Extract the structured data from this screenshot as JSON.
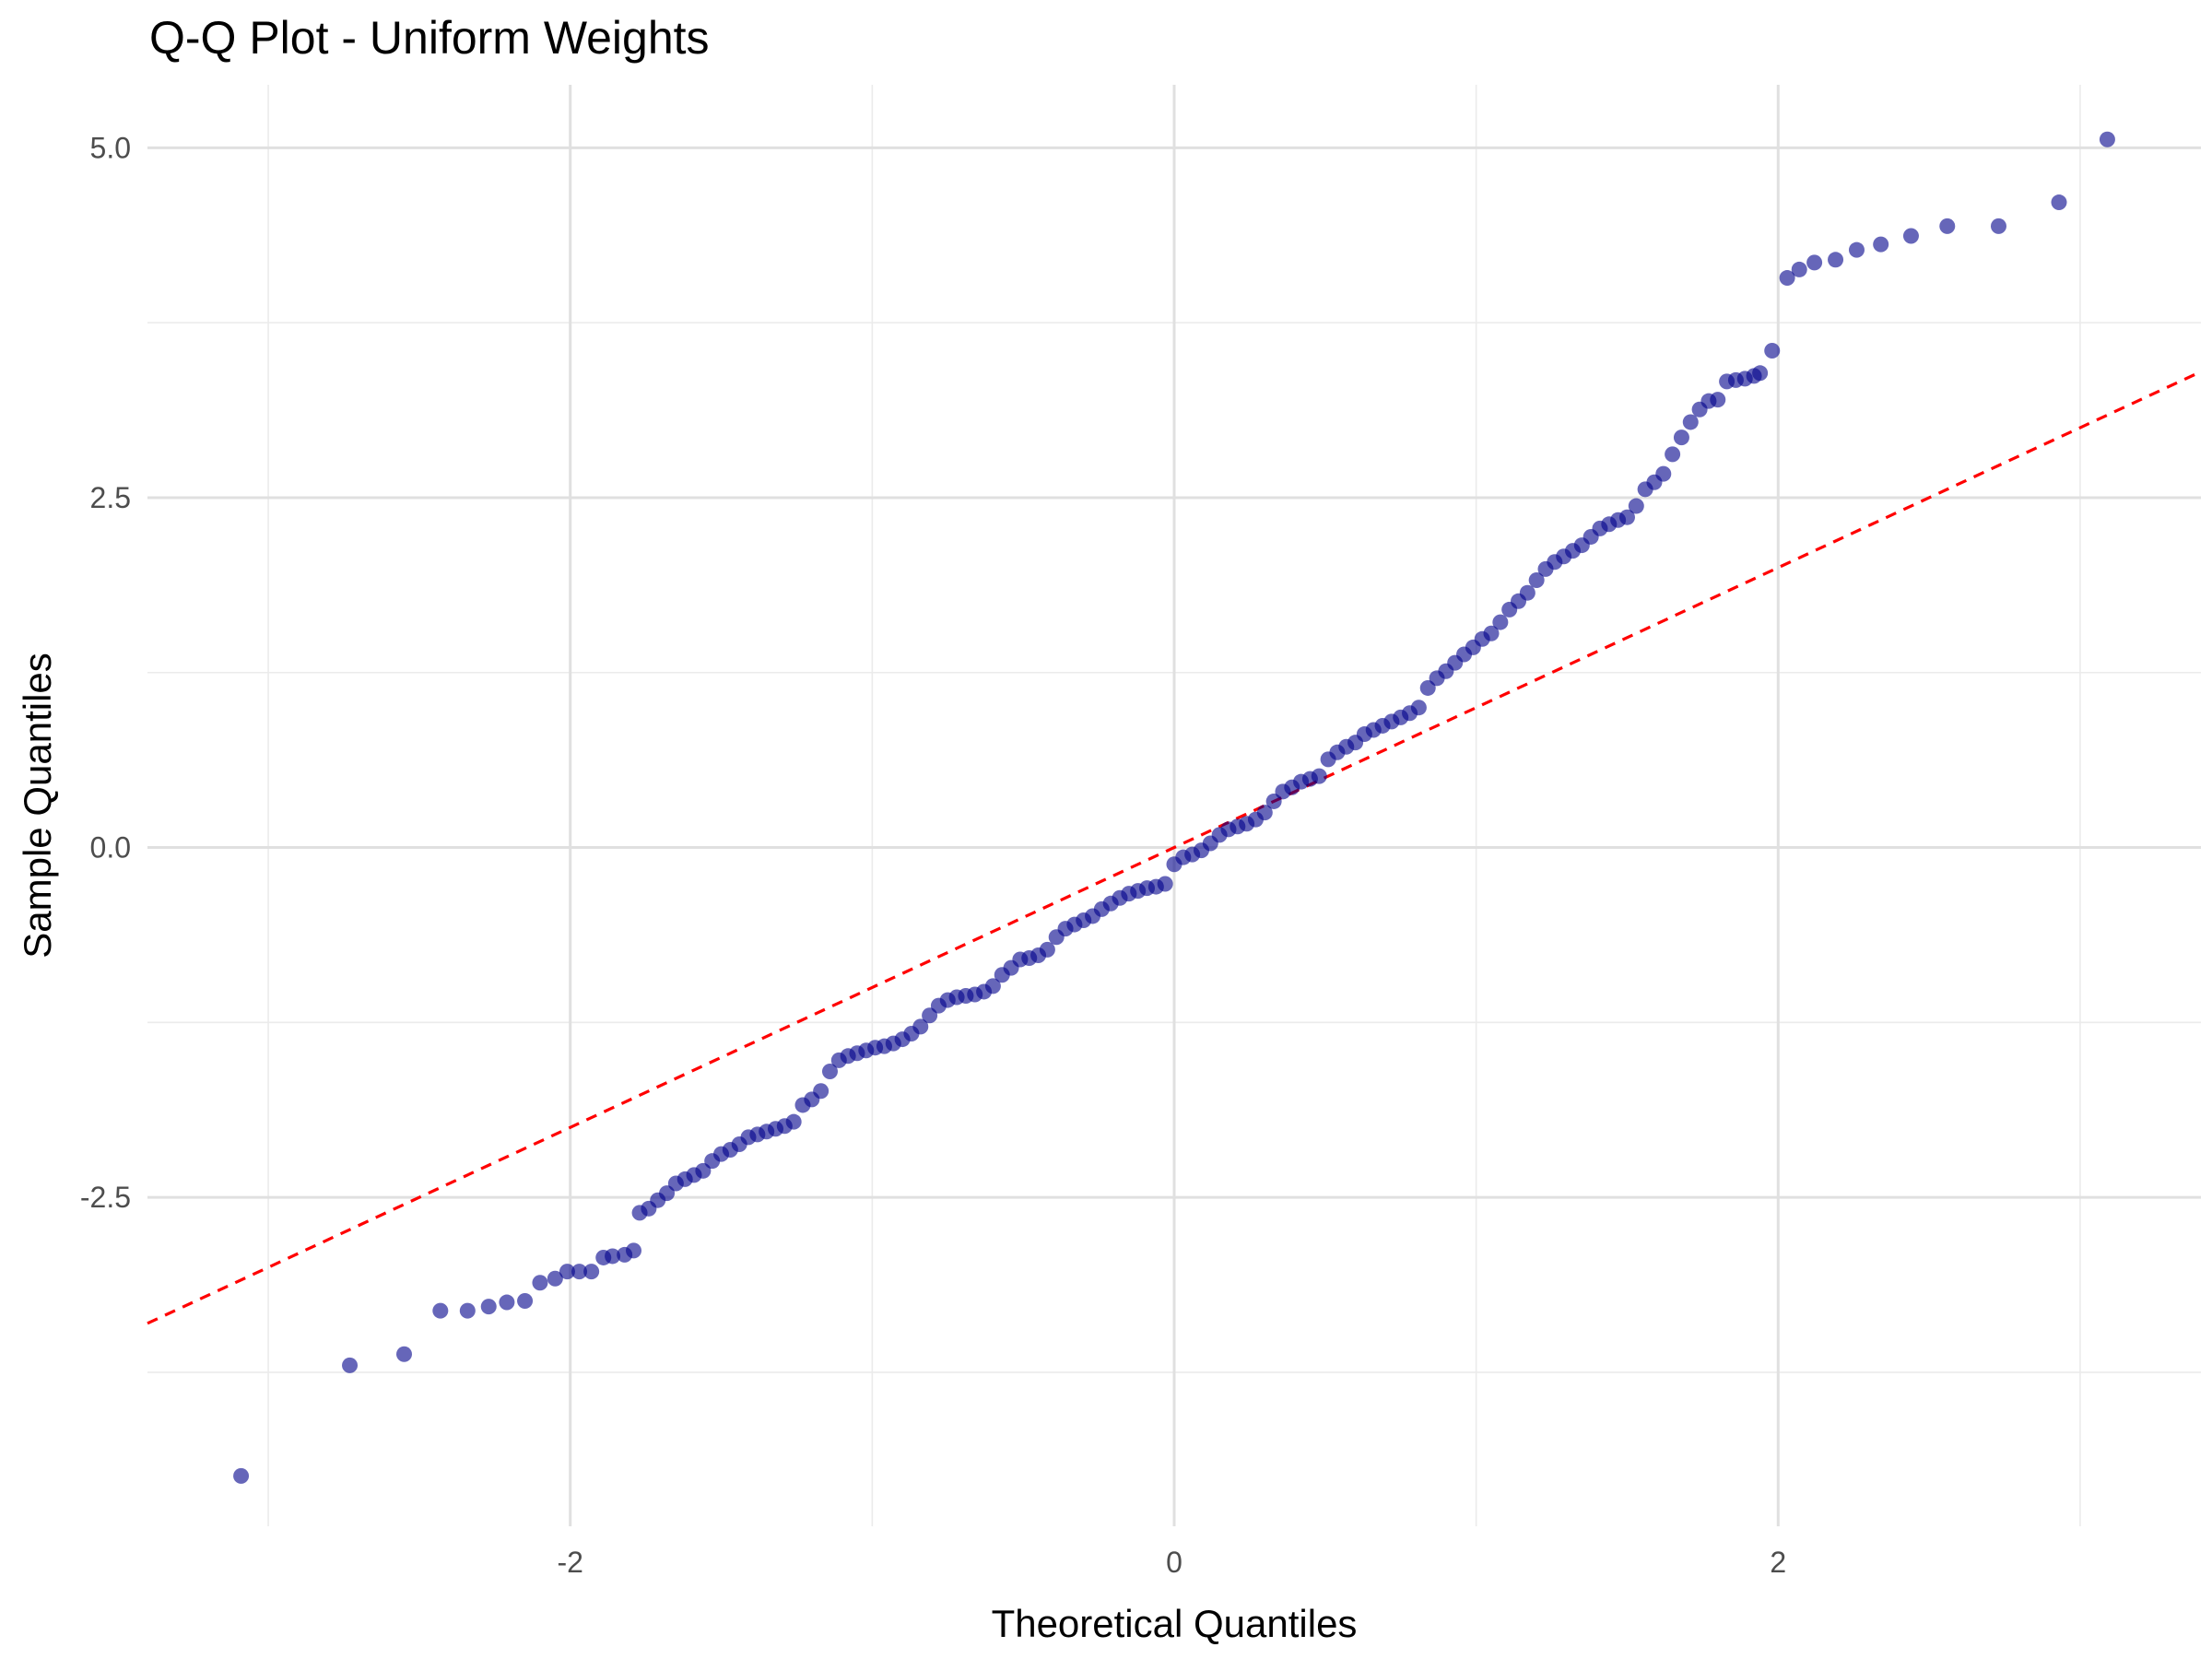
{
  "chart_data": {
    "type": "scatter",
    "title": "Q-Q Plot - Uniform Weights",
    "xlabel": "Theoretical Quantiles",
    "ylabel": "Sample Quantiles",
    "xlim": [
      -3.4,
      3.4
    ],
    "ylim": [
      -4.85,
      5.45
    ],
    "x_ticks": [
      -2,
      0,
      2
    ],
    "x_tick_labels": [
      "-2",
      "0",
      "2"
    ],
    "y_ticks": [
      -2.5,
      0,
      2.5,
      5
    ],
    "y_tick_labels": [
      "-2.5",
      "0.0",
      "2.5",
      "5.0"
    ],
    "grid": true,
    "point_color": "#00008b",
    "point_opacity": 0.6,
    "reference_line": {
      "intercept": 0,
      "slope": 1,
      "color": "#ff0000",
      "style": "dashed"
    },
    "series": [
      {
        "points": [
          [
            -3.09,
            -4.49
          ],
          [
            -2.73,
            -3.7
          ],
          [
            -2.55,
            -3.62
          ],
          [
            -2.43,
            -3.31
          ],
          [
            -2.34,
            -3.31
          ],
          [
            -2.27,
            -3.28
          ],
          [
            -2.21,
            -3.25
          ],
          [
            -2.15,
            -3.24
          ],
          [
            -2.1,
            -3.11
          ],
          [
            -2.05,
            -3.08
          ],
          [
            -2.01,
            -3.03
          ],
          [
            -1.97,
            -3.03
          ],
          [
            -1.93,
            -3.03
          ],
          [
            -1.89,
            -2.93
          ],
          [
            -1.86,
            -2.92
          ],
          [
            -1.82,
            -2.91
          ],
          [
            -1.79,
            -2.88
          ],
          [
            -1.77,
            -2.61
          ],
          [
            -1.74,
            -2.58
          ],
          [
            -1.71,
            -2.52
          ],
          [
            -1.68,
            -2.47
          ],
          [
            -1.65,
            -2.4
          ],
          [
            -1.62,
            -2.37
          ],
          [
            -1.59,
            -2.34
          ],
          [
            -1.56,
            -2.31
          ],
          [
            -1.53,
            -2.24
          ],
          [
            -1.5,
            -2.19
          ],
          [
            -1.47,
            -2.16
          ],
          [
            -1.44,
            -2.12
          ],
          [
            -1.41,
            -2.07
          ],
          [
            -1.38,
            -2.05
          ],
          [
            -1.35,
            -2.03
          ],
          [
            -1.32,
            -2.01
          ],
          [
            -1.29,
            -1.99
          ],
          [
            -1.26,
            -1.96
          ],
          [
            -1.23,
            -1.84
          ],
          [
            -1.2,
            -1.8
          ],
          [
            -1.17,
            -1.74
          ],
          [
            -1.14,
            -1.6
          ],
          [
            -1.11,
            -1.52
          ],
          [
            -1.08,
            -1.49
          ],
          [
            -1.05,
            -1.47
          ],
          [
            -1.02,
            -1.45
          ],
          [
            -0.99,
            -1.43
          ],
          [
            -0.96,
            -1.42
          ],
          [
            -0.93,
            -1.4
          ],
          [
            -0.9,
            -1.37
          ],
          [
            -0.87,
            -1.33
          ],
          [
            -0.84,
            -1.28
          ],
          [
            -0.81,
            -1.2
          ],
          [
            -0.78,
            -1.13
          ],
          [
            -0.75,
            -1.09
          ],
          [
            -0.72,
            -1.07
          ],
          [
            -0.69,
            -1.06
          ],
          [
            -0.66,
            -1.05
          ],
          [
            -0.63,
            -1.03
          ],
          [
            -0.6,
            -0.99
          ],
          [
            -0.57,
            -0.91
          ],
          [
            -0.54,
            -0.86
          ],
          [
            -0.51,
            -0.8
          ],
          [
            -0.48,
            -0.79
          ],
          [
            -0.45,
            -0.77
          ],
          [
            -0.42,
            -0.73
          ],
          [
            -0.39,
            -0.64
          ],
          [
            -0.36,
            -0.58
          ],
          [
            -0.33,
            -0.55
          ],
          [
            -0.3,
            -0.52
          ],
          [
            -0.27,
            -0.49
          ],
          [
            -0.24,
            -0.44
          ],
          [
            -0.21,
            -0.4
          ],
          [
            -0.18,
            -0.36
          ],
          [
            -0.15,
            -0.33
          ],
          [
            -0.12,
            -0.31
          ],
          [
            -0.09,
            -0.29
          ],
          [
            -0.06,
            -0.28
          ],
          [
            -0.03,
            -0.26
          ],
          [
            0.0,
            -0.12
          ],
          [
            0.03,
            -0.07
          ],
          [
            0.06,
            -0.05
          ],
          [
            0.09,
            -0.02
          ],
          [
            0.12,
            0.03
          ],
          [
            0.15,
            0.09
          ],
          [
            0.18,
            0.13
          ],
          [
            0.21,
            0.15
          ],
          [
            0.24,
            0.17
          ],
          [
            0.27,
            0.2
          ],
          [
            0.3,
            0.25
          ],
          [
            0.33,
            0.33
          ],
          [
            0.36,
            0.4
          ],
          [
            0.39,
            0.43
          ],
          [
            0.42,
            0.47
          ],
          [
            0.45,
            0.49
          ],
          [
            0.48,
            0.51
          ],
          [
            0.51,
            0.63
          ],
          [
            0.54,
            0.68
          ],
          [
            0.57,
            0.72
          ],
          [
            0.6,
            0.75
          ],
          [
            0.63,
            0.81
          ],
          [
            0.66,
            0.84
          ],
          [
            0.69,
            0.87
          ],
          [
            0.72,
            0.9
          ],
          [
            0.75,
            0.93
          ],
          [
            0.78,
            0.96
          ],
          [
            0.81,
            1.0
          ],
          [
            0.84,
            1.14
          ],
          [
            0.87,
            1.21
          ],
          [
            0.9,
            1.26
          ],
          [
            0.93,
            1.32
          ],
          [
            0.96,
            1.38
          ],
          [
            0.99,
            1.43
          ],
          [
            1.02,
            1.49
          ],
          [
            1.05,
            1.53
          ],
          [
            1.08,
            1.61
          ],
          [
            1.11,
            1.7
          ],
          [
            1.14,
            1.76
          ],
          [
            1.17,
            1.82
          ],
          [
            1.2,
            1.91
          ],
          [
            1.23,
            1.99
          ],
          [
            1.26,
            2.04
          ],
          [
            1.29,
            2.08
          ],
          [
            1.32,
            2.12
          ],
          [
            1.35,
            2.16
          ],
          [
            1.38,
            2.22
          ],
          [
            1.41,
            2.28
          ],
          [
            1.44,
            2.31
          ],
          [
            1.47,
            2.34
          ],
          [
            1.5,
            2.36
          ],
          [
            1.53,
            2.44
          ],
          [
            1.56,
            2.56
          ],
          [
            1.59,
            2.61
          ],
          [
            1.62,
            2.67
          ],
          [
            1.65,
            2.81
          ],
          [
            1.68,
            2.93
          ],
          [
            1.71,
            3.04
          ],
          [
            1.74,
            3.13
          ],
          [
            1.77,
            3.19
          ],
          [
            1.8,
            3.2
          ],
          [
            1.83,
            3.33
          ],
          [
            1.86,
            3.34
          ],
          [
            1.89,
            3.35
          ],
          [
            1.92,
            3.37
          ],
          [
            1.94,
            3.39
          ],
          [
            1.98,
            3.55
          ],
          [
            2.03,
            4.07
          ],
          [
            2.07,
            4.13
          ],
          [
            2.12,
            4.18
          ],
          [
            2.19,
            4.2
          ],
          [
            2.26,
            4.27
          ],
          [
            2.34,
            4.31
          ],
          [
            2.44,
            4.37
          ],
          [
            2.56,
            4.44
          ],
          [
            2.73,
            4.44
          ],
          [
            2.93,
            4.61
          ],
          [
            3.09,
            5.06
          ]
        ]
      }
    ]
  }
}
